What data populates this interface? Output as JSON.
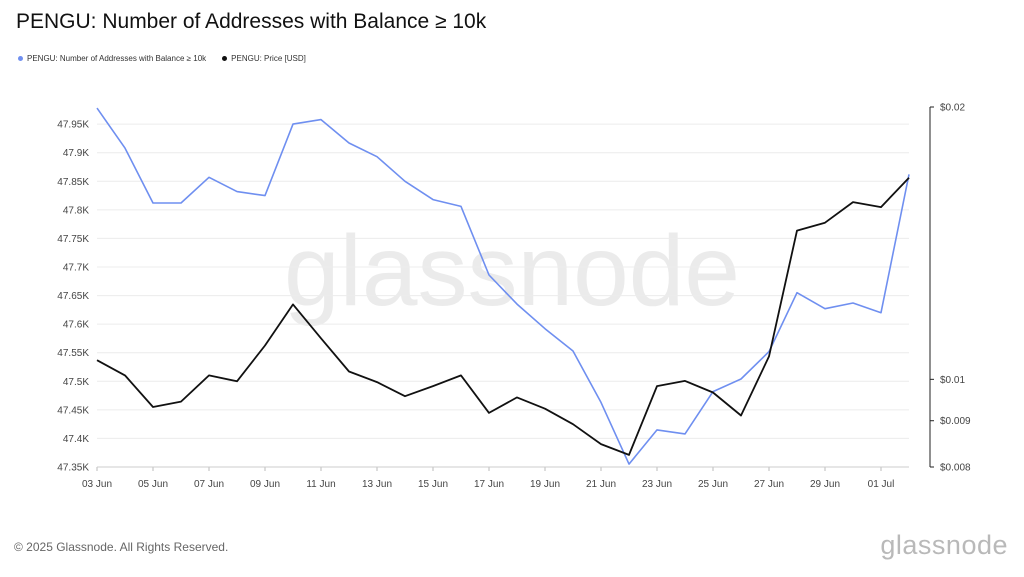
{
  "colors": {
    "addresses": "#6f8ff0",
    "price": "#111111",
    "grid": "#ececec",
    "axis_text": "#444444"
  },
  "chart_data": {
    "type": "line",
    "title": "PENGU: Number of Addresses with Balance ≥ 10k",
    "legend_position": "top-left",
    "grid": true,
    "x": [
      "03 Jun",
      "04 Jun",
      "05 Jun",
      "06 Jun",
      "07 Jun",
      "08 Jun",
      "09 Jun",
      "10 Jun",
      "11 Jun",
      "12 Jun",
      "13 Jun",
      "14 Jun",
      "15 Jun",
      "16 Jun",
      "17 Jun",
      "18 Jun",
      "19 Jun",
      "20 Jun",
      "21 Jun",
      "22 Jun",
      "23 Jun",
      "24 Jun",
      "25 Jun",
      "26 Jun",
      "27 Jun",
      "28 Jun",
      "29 Jun",
      "30 Jun",
      "01 Jul",
      "02 Jul"
    ],
    "x_tick_labels": [
      "03 Jun",
      "05 Jun",
      "07 Jun",
      "09 Jun",
      "11 Jun",
      "13 Jun",
      "15 Jun",
      "17 Jun",
      "19 Jun",
      "21 Jun",
      "23 Jun",
      "25 Jun",
      "27 Jun",
      "29 Jun",
      "01 Jul"
    ],
    "y_left": {
      "range": [
        47350,
        47980
      ],
      "ticks": [
        47350,
        47400,
        47450,
        47500,
        47550,
        47600,
        47650,
        47700,
        47750,
        47800,
        47850,
        47900,
        47950
      ],
      "tick_labels": [
        "47.35K",
        "47.4K",
        "47.45K",
        "47.5K",
        "47.55K",
        "47.6K",
        "47.65K",
        "47.7K",
        "47.75K",
        "47.8K",
        "47.85K",
        "47.9K",
        "47.95K"
      ]
    },
    "y_right": {
      "scale": "log",
      "range": [
        0.008,
        0.02
      ],
      "ticks": [
        0.008,
        0.009,
        0.01,
        0.02
      ],
      "tick_labels": [
        "$0.008",
        "$0.009",
        "$0.01",
        "$0.02"
      ]
    },
    "series": [
      {
        "name": "PENGU: Number of Addresses with Balance ≥ 10k",
        "axis": "left",
        "values": [
          47978,
          47908,
          47812,
          47812,
          47857,
          47832,
          47825,
          47950,
          47958,
          47917,
          47893,
          47850,
          47818,
          47806,
          47686,
          47635,
          47592,
          47553,
          47463,
          47355,
          47415,
          47408,
          47482,
          47504,
          47552,
          47655,
          47627,
          47637,
          47620,
          47862
        ]
      },
      {
        "name": "PENGU: Price [USD]",
        "axis": "right",
        "values": [
          0.0105,
          0.0101,
          0.00932,
          0.00945,
          0.0101,
          0.00995,
          0.0109,
          0.0121,
          0.0111,
          0.0102,
          0.00993,
          0.00958,
          0.00983,
          0.0101,
          0.00918,
          0.00955,
          0.00928,
          0.00892,
          0.00848,
          0.00825,
          0.00983,
          0.00996,
          0.00967,
          0.00912,
          0.0106,
          0.0146,
          0.0149,
          0.0157,
          0.0155,
          0.0167
        ]
      }
    ]
  },
  "footer": {
    "copyright": "© 2025 Glassnode. All Rights Reserved.",
    "logo_text": "glassnode"
  },
  "watermark": "glassnode"
}
